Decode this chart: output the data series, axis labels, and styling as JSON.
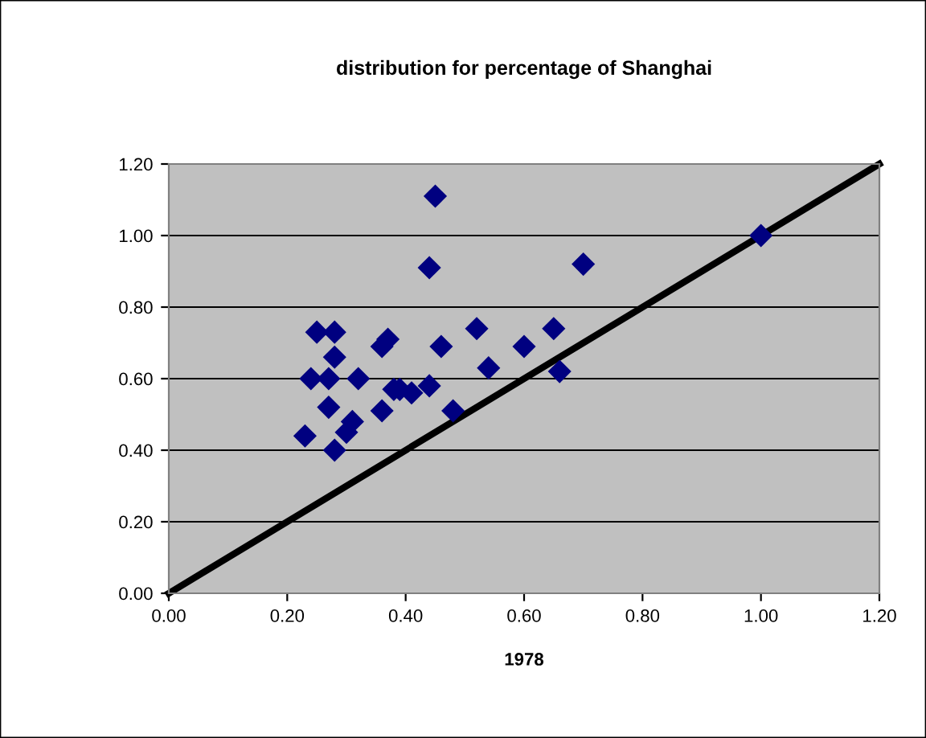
{
  "chart_data": {
    "type": "scatter",
    "title": "distribution for percentage of Shanghai",
    "xlabel": "1978",
    "xlim": [
      0,
      1.2
    ],
    "xticks": [
      {
        "value": 0,
        "label": "0.00"
      },
      {
        "value": 0.2,
        "label": "0.20"
      },
      {
        "value": 0.4,
        "label": "0.40"
      },
      {
        "value": 0.6,
        "label": "0.60"
      },
      {
        "value": 0.8,
        "label": "0.80"
      },
      {
        "value": 1,
        "label": "1.00"
      },
      {
        "value": 1.2,
        "label": "1.20"
      }
    ],
    "ylim": [
      0,
      1.2
    ],
    "yticks": [
      {
        "value": 0,
        "label": "0.00"
      },
      {
        "value": 0.2,
        "label": "0.20"
      },
      {
        "value": 0.4,
        "label": "0.40"
      },
      {
        "value": 0.6,
        "label": "0.60"
      },
      {
        "value": 0.8,
        "label": "0.80"
      },
      {
        "value": 1,
        "label": "1.00"
      },
      {
        "value": 1.2,
        "label": "1.20"
      }
    ],
    "grid": "y",
    "marker": "diamond",
    "legend": false,
    "series": [
      {
        "color": "#000080",
        "x": [
          0.45,
          0.44,
          0.7,
          0.25,
          0.28,
          0.37,
          0.36,
          0.28,
          0.46,
          0.52,
          0.6,
          0.65,
          0.66,
          0.54,
          0.24,
          0.27,
          0.32,
          0.38,
          0.39,
          0.41,
          0.44,
          0.27,
          0.36,
          0.48,
          0.31,
          0.3,
          0.23,
          0.28,
          1.0
        ],
        "values": [
          1.11,
          0.91,
          0.92,
          0.73,
          0.73,
          0.71,
          0.69,
          0.66,
          0.69,
          0.74,
          0.69,
          0.74,
          0.62,
          0.63,
          0.6,
          0.6,
          0.6,
          0.57,
          0.57,
          0.56,
          0.58,
          0.52,
          0.51,
          0.51,
          0.48,
          0.45,
          0.44,
          0.4,
          1.0
        ]
      },
      {
        "type": "line",
        "color": "#000000",
        "x": [
          0,
          1.2
        ],
        "values": [
          0,
          1.2
        ],
        "marker": "none"
      }
    ]
  }
}
